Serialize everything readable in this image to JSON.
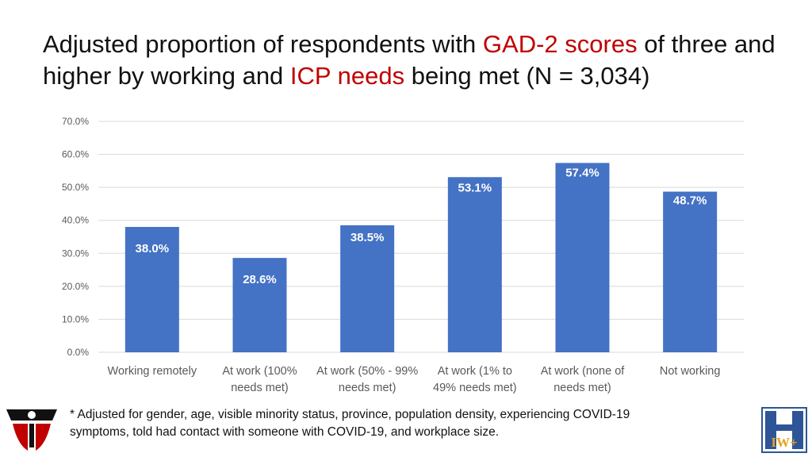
{
  "title": {
    "part1": "Adjusted proportion of respondents with ",
    "highlight1": "GAD-2 scores",
    "part2": " of three and higher by working and ",
    "highlight2": "ICP needs",
    "part3": " being met (N = 3,034)"
  },
  "colors": {
    "bar": "#4472c4",
    "highlight": "#c00000",
    "grid": "#d9d9d9"
  },
  "chart_data": {
    "type": "bar",
    "categories": [
      [
        "Working remotely"
      ],
      [
        "At work (100%",
        "needs met)"
      ],
      [
        "At work (50% - 99%",
        "needs met)"
      ],
      [
        "At work (1% to",
        "49% needs met)"
      ],
      [
        "At work (none of",
        "needs met)"
      ],
      [
        "Not working"
      ]
    ],
    "values": [
      38.0,
      28.6,
      38.5,
      53.1,
      57.4,
      48.7
    ],
    "data_labels": [
      "38.0%",
      "28.6%",
      "38.5%",
      "53.1%",
      "57.4%",
      "48.7%"
    ],
    "y_ticks": [
      0,
      10,
      20,
      30,
      40,
      50,
      60,
      70
    ],
    "y_tick_labels": [
      "0.0%",
      "10.0%",
      "20.0%",
      "30.0%",
      "40.0%",
      "50.0%",
      "60.0%",
      "70.0%"
    ],
    "ylim": [
      0,
      70
    ],
    "grid": true,
    "legend": "none"
  },
  "footnote": {
    "line1": "* Adjusted for gender, age, visible minority status, province, population density, experiencing COVID-19",
    "line2": "symptoms, told had contact with someone with COVID-19, and workplace size."
  },
  "logos": {
    "left_icon": "person-shield-logo-icon",
    "right_icon": "iwh-logo-icon",
    "right_text": "IW+"
  }
}
